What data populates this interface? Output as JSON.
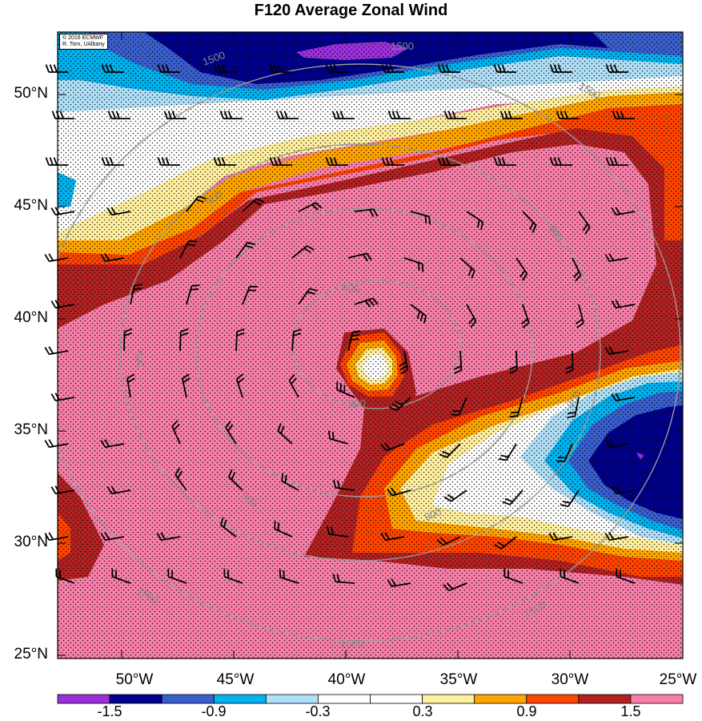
{
  "title": "F120 Average Zonal Wind",
  "credit": {
    "line1": "© 2016 ECMWF",
    "line2": "R. Torn, UAlbany"
  },
  "lat_labels": [
    "50°N",
    "45°N",
    "40°N",
    "35°N",
    "30°N",
    "25°N"
  ],
  "lon_labels": [
    "50°W",
    "45°W",
    "40°W",
    "35°W",
    "30°W",
    "25°W"
  ],
  "contour_labels": [
    "1500",
    "1500",
    "1500",
    "900",
    "900",
    "900",
    "900",
    "300",
    "300",
    "900",
    "900",
    "900",
    "1500",
    "1500",
    "1500"
  ],
  "colorbar": {
    "labels": [
      "-1.5",
      "-0.9",
      "-0.3",
      "0.3",
      "0.9",
      "1.5"
    ],
    "colors": [
      "#9b30d9",
      "#00008b",
      "#3a5fcd",
      "#00b2ee",
      "#b0e0f8",
      "#ffffff",
      "#ffffff",
      "#fff0a0",
      "#ffa500",
      "#ff4500",
      "#b22222",
      "#f77fa9"
    ]
  },
  "colors": {
    "pink": "#f77fa9",
    "darkred": "#b22222",
    "orangered": "#ff4500",
    "orange": "#ffa500",
    "yellow": "#fff0a0",
    "white": "#ffffff",
    "lightblue": "#b0e0f8",
    "cyan": "#00b2ee",
    "blue": "#3a5fcd",
    "navy": "#00008b",
    "purple": "#9b30d9",
    "contour": "#9a9a9a"
  }
}
